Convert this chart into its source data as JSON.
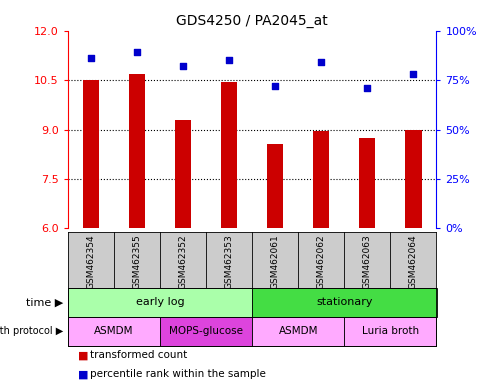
{
  "title": "GDS4250 / PA2045_at",
  "samples": [
    "GSM462354",
    "GSM462355",
    "GSM462352",
    "GSM462353",
    "GSM462061",
    "GSM462062",
    "GSM462063",
    "GSM462064"
  ],
  "transformed_counts": [
    10.5,
    10.7,
    9.3,
    10.45,
    8.55,
    8.95,
    8.75,
    9.0
  ],
  "percentile_ranks": [
    86,
    89,
    82,
    85,
    72,
    84,
    71,
    78
  ],
  "ylim_left": [
    6,
    12
  ],
  "ylim_right": [
    0,
    100
  ],
  "yticks_left": [
    6,
    7.5,
    9,
    10.5,
    12
  ],
  "yticks_right": [
    0,
    25,
    50,
    75,
    100
  ],
  "bar_color": "#cc0000",
  "dot_color": "#0000cc",
  "bar_bottom": 6,
  "time_groups": [
    {
      "label": "early log",
      "start": 0,
      "end": 4,
      "color": "#aaffaa"
    },
    {
      "label": "stationary",
      "start": 4,
      "end": 8,
      "color": "#44dd44"
    }
  ],
  "protocol_groups": [
    {
      "label": "ASMDM",
      "start": 0,
      "end": 2,
      "color": "#ffaaff"
    },
    {
      "label": "MOPS-glucose",
      "start": 2,
      "end": 4,
      "color": "#dd44dd"
    },
    {
      "label": "ASMDM",
      "start": 4,
      "end": 6,
      "color": "#ffaaff"
    },
    {
      "label": "Luria broth",
      "start": 6,
      "end": 8,
      "color": "#ffaaff"
    }
  ],
  "legend_items": [
    {
      "label": "transformed count",
      "color": "#cc0000"
    },
    {
      "label": "percentile rank within the sample",
      "color": "#0000cc"
    }
  ],
  "label_bg_color": "#cccccc",
  "grid_color": "black",
  "grid_linestyle": "dotted",
  "bar_width": 0.35
}
